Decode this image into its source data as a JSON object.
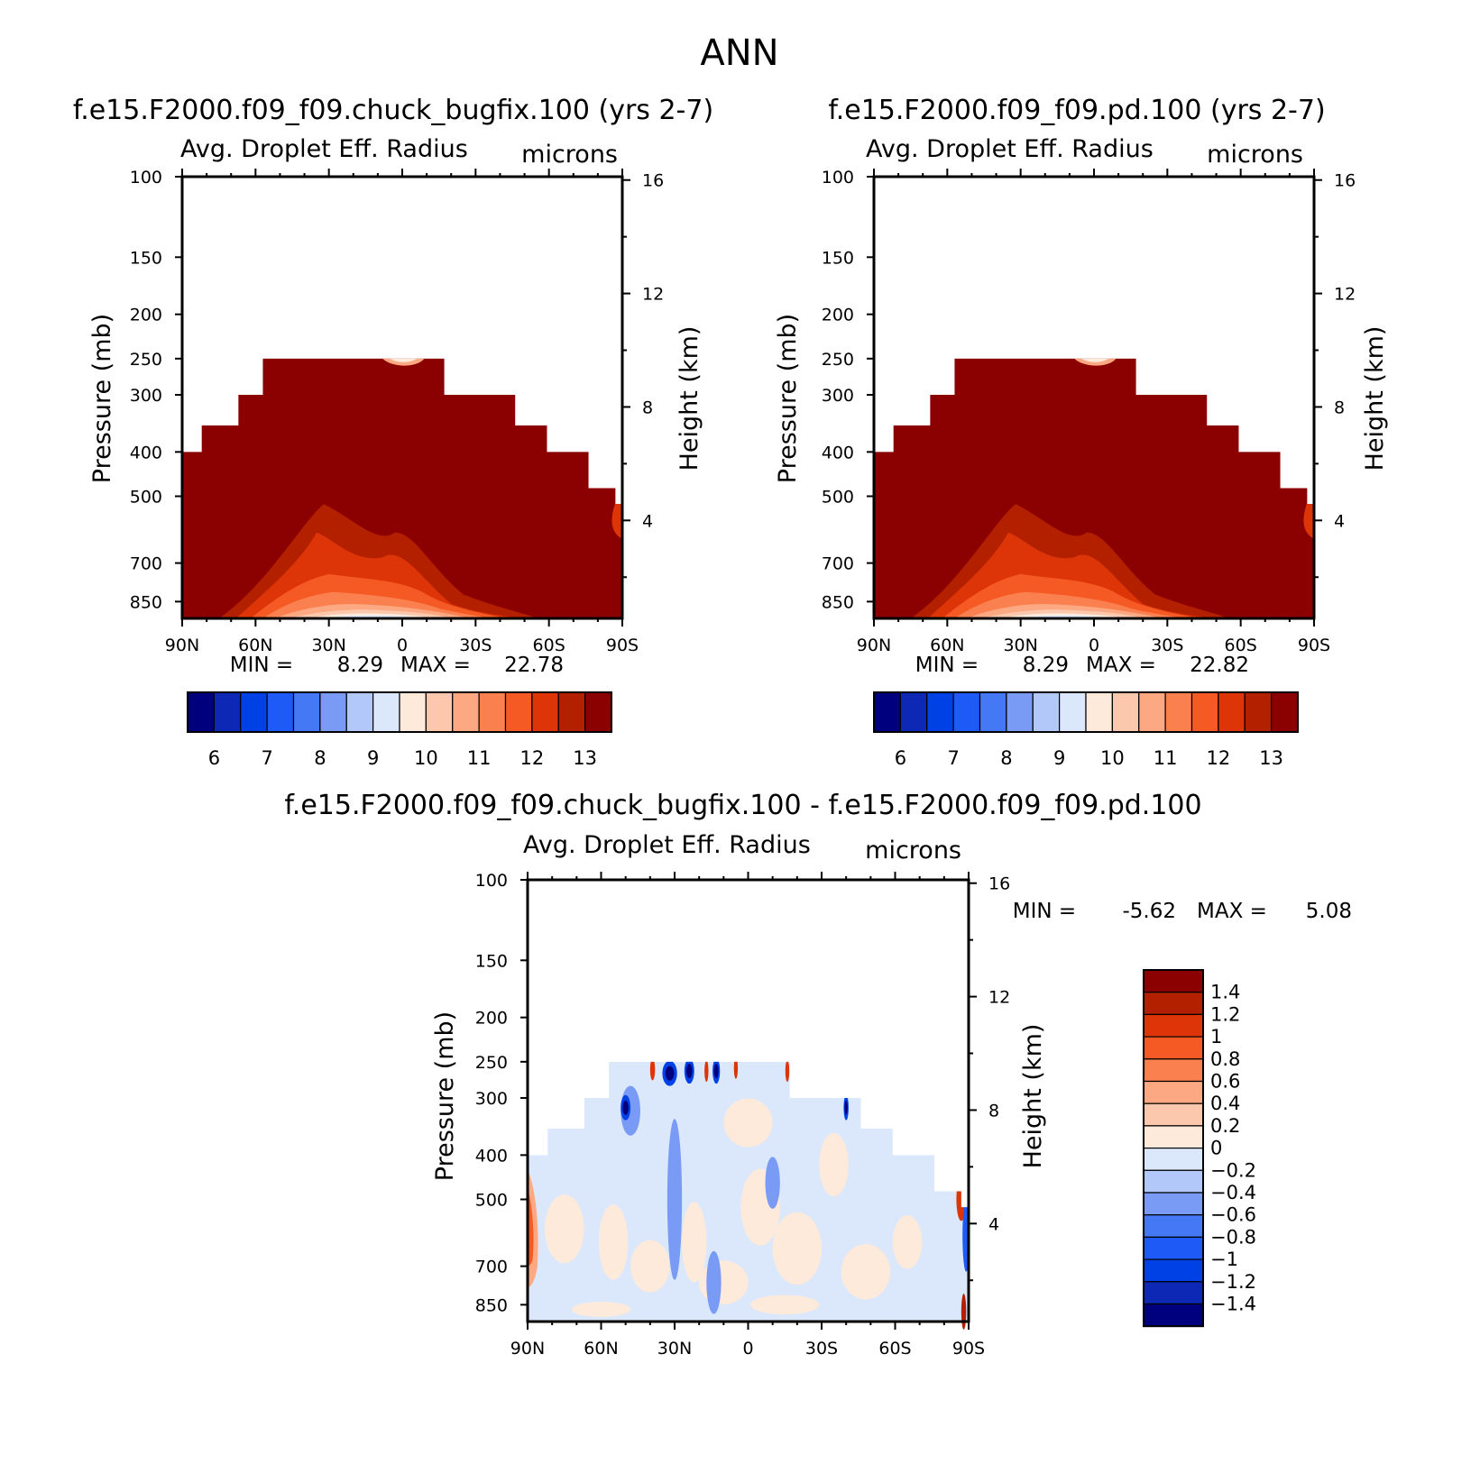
{
  "figure_title": "ANN",
  "colors": {
    "abs_scale": [
      "#00007f",
      "#0c28b5",
      "#0041e6",
      "#1e5af5",
      "#4478f5",
      "#7a9bf5",
      "#b2c8f8",
      "#dbe8fb",
      "#fdeadb",
      "#fcc8ad",
      "#fca882",
      "#fb8050",
      "#f55a24",
      "#dd3508",
      "#b32000",
      "#8b0000"
    ],
    "diff_scale": [
      "#8b0000",
      "#b32000",
      "#dd3508",
      "#f55a24",
      "#fb8050",
      "#fca882",
      "#fcc8ad",
      "#fdeadb",
      "#dbe8fb",
      "#b2c8f8",
      "#7a9bf5",
      "#4478f5",
      "#1e5af5",
      "#0041e6",
      "#0c28b5",
      "#00007f"
    ]
  },
  "chart_data": [
    {
      "type": "heatmap",
      "panel": "case",
      "title": "f.e15.F2000.f09_f09.chuck_bugfix.100 (yrs 2-7)",
      "subtitle_left": "Avg. Droplet Eff. Radius",
      "subtitle_right": "microns",
      "ylabel": "Pressure (mb)",
      "ylabel_right": "Height (km)",
      "x_ticks": [
        "90N",
        "60N",
        "30N",
        "0",
        "30S",
        "60S",
        "90S"
      ],
      "x_range": [
        90,
        -90
      ],
      "y_ticks": [
        "100",
        "150",
        "200",
        "250",
        "300",
        "400",
        "500",
        "700",
        "850"
      ],
      "y_range_mb": [
        100,
        925
      ],
      "y_right_ticks": [
        "16",
        "12",
        "8",
        "4"
      ],
      "min_text": "MIN =",
      "min_value": "8.29",
      "max_text": "MAX =",
      "max_value": "22.78",
      "colorbar_labels": [
        "6",
        "7",
        "8",
        "9",
        "10",
        "11",
        "12",
        "13"
      ],
      "cloud_top_mb": [
        {
          "lat_from": 90,
          "lat_to": 82,
          "p": 400
        },
        {
          "lat_from": 82,
          "lat_to": 67,
          "p": 350
        },
        {
          "lat_from": 67,
          "lat_to": 57,
          "p": 300
        },
        {
          "lat_from": 57,
          "lat_to": -17,
          "p": 250
        },
        {
          "lat_from": -17,
          "lat_to": -46,
          "p": 300
        },
        {
          "lat_from": -46,
          "lat_to": -59,
          "p": 350
        },
        {
          "lat_from": -59,
          "lat_to": -76,
          "p": 400
        },
        {
          "lat_from": -76,
          "lat_to": -87,
          "p": 480
        },
        {
          "lat_from": -87,
          "lat_to": -90,
          "p": 520
        }
      ],
      "notes": "Mostly saturated at >13 microns; values drop to ~9-12 microns in the tropical lower troposphere (30N-10S) and a small lighter patch near 250 mb at 10N-0"
    },
    {
      "type": "heatmap",
      "panel": "control",
      "title": "f.e15.F2000.f09_f09.pd.100 (yrs 2-7)",
      "subtitle_left": "Avg. Droplet Eff. Radius",
      "subtitle_right": "microns",
      "ylabel": "Pressure (mb)",
      "ylabel_right": "Height (km)",
      "x_ticks": [
        "90N",
        "60N",
        "30N",
        "0",
        "30S",
        "60S",
        "90S"
      ],
      "x_range": [
        90,
        -90
      ],
      "y_ticks": [
        "100",
        "150",
        "200",
        "250",
        "300",
        "400",
        "500",
        "700",
        "850"
      ],
      "y_range_mb": [
        100,
        925
      ],
      "y_right_ticks": [
        "16",
        "12",
        "8",
        "4"
      ],
      "min_text": "MIN =",
      "min_value": "8.29",
      "max_text": "MAX =",
      "max_value": "22.82",
      "colorbar_labels": [
        "6",
        "7",
        "8",
        "9",
        "10",
        "11",
        "12",
        "13"
      ],
      "notes": "Nearly identical to the case panel"
    },
    {
      "type": "heatmap",
      "panel": "difference",
      "title": "f.e15.F2000.f09_f09.chuck_bugfix.100 - f.e15.F2000.f09_f09.pd.100",
      "subtitle_left": "Avg. Droplet Eff. Radius",
      "subtitle_right": "microns",
      "ylabel": "Pressure (mb)",
      "ylabel_right": "Height (km)",
      "x_ticks": [
        "90N",
        "60N",
        "30N",
        "0",
        "30S",
        "60S",
        "90S"
      ],
      "x_range": [
        90,
        -90
      ],
      "y_ticks": [
        "100",
        "150",
        "200",
        "250",
        "300",
        "400",
        "500",
        "700",
        "850"
      ],
      "y_range_mb": [
        100,
        925
      ],
      "y_right_ticks": [
        "16",
        "12",
        "8",
        "4"
      ],
      "min_text": "MIN =",
      "min_value": "-5.62",
      "max_text": "MAX =",
      "max_value": "5.08",
      "colorbar_labels": [
        "1.4",
        "1.2",
        "1",
        "0.8",
        "0.6",
        "0.4",
        "0.2",
        "0",
        "-0.2",
        "-0.4",
        "-0.6",
        "-0.8",
        "-1",
        "-1.2",
        "-1.4"
      ],
      "notes": "Mostly within +/-0.2; strong negatives near 250-300 mb around 30N and 15N-20N; positive band at 90N near 500-700 mb; mixed signal near 90S around 500 mb"
    }
  ]
}
